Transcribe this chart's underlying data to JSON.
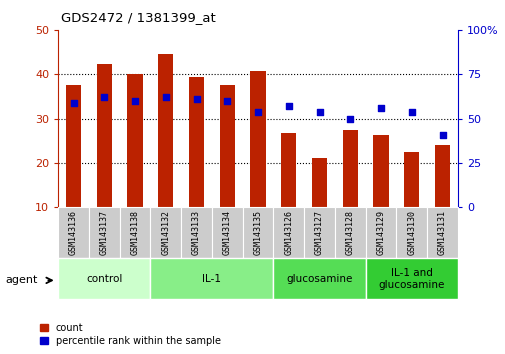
{
  "title": "GDS2472 / 1381399_at",
  "samples": [
    "GSM143136",
    "GSM143137",
    "GSM143138",
    "GSM143132",
    "GSM143133",
    "GSM143134",
    "GSM143135",
    "GSM143126",
    "GSM143127",
    "GSM143128",
    "GSM143129",
    "GSM143130",
    "GSM143131"
  ],
  "counts": [
    37.5,
    42.3,
    40.0,
    44.5,
    39.5,
    37.5,
    40.8,
    26.8,
    21.0,
    27.5,
    26.3,
    22.5,
    24.0
  ],
  "percentiles": [
    59,
    62,
    60,
    62,
    61,
    60,
    54,
    57,
    54,
    50,
    56,
    54,
    41
  ],
  "groups": [
    {
      "label": "control",
      "start": 0,
      "end": 3,
      "color": "#ccffcc"
    },
    {
      "label": "IL-1",
      "start": 3,
      "end": 7,
      "color": "#88ee88"
    },
    {
      "label": "glucosamine",
      "start": 7,
      "end": 10,
      "color": "#55dd55"
    },
    {
      "label": "IL-1 and\nglucosamine",
      "start": 10,
      "end": 13,
      "color": "#33cc33"
    }
  ],
  "bar_color": "#bb2200",
  "dot_color": "#0000cc",
  "left_ylim": [
    10,
    50
  ],
  "left_yticks": [
    10,
    20,
    30,
    40,
    50
  ],
  "right_ylim": [
    0,
    100
  ],
  "right_yticks": [
    0,
    25,
    50,
    75,
    100
  ],
  "right_yticklabels": [
    "0",
    "25",
    "50",
    "75",
    "100%"
  ],
  "grid_values": [
    20,
    30,
    40
  ],
  "bar_width": 0.5,
  "background_color": "#ffffff",
  "tick_area_color": "#cccccc",
  "agent_label": "agent"
}
